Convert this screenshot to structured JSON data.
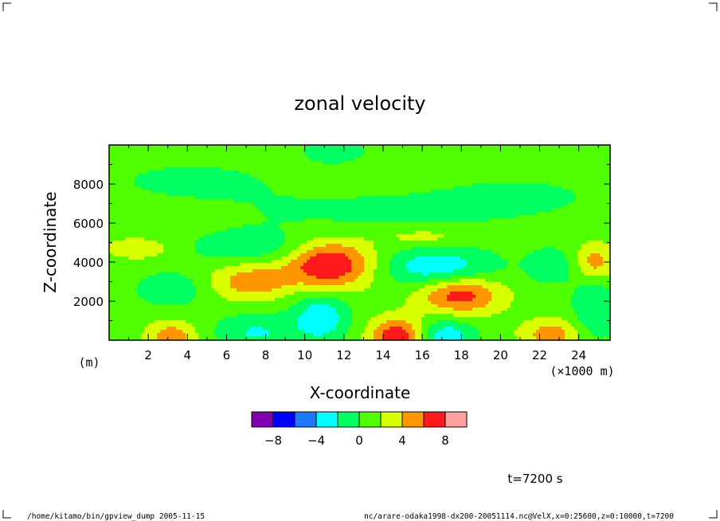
{
  "chart_data": {
    "type": "heatmap",
    "title": "zonal velocity",
    "xlabel": "X-coordinate",
    "ylabel": "Z-coordinate",
    "x_unit": "(×1000 m)",
    "y_unit": "(m)",
    "xlim": [
      0,
      25.6
    ],
    "ylim": [
      0,
      10000
    ],
    "x_ticks": [
      2,
      4,
      6,
      8,
      10,
      12,
      14,
      16,
      18,
      20,
      22,
      24
    ],
    "y_ticks": [
      2000,
      4000,
      6000,
      8000
    ],
    "colorbar": {
      "levels": [
        -10,
        -8,
        -6,
        -4,
        -2,
        0,
        2,
        4,
        6,
        8,
        10
      ],
      "tick_labels": [
        -8,
        -4,
        0,
        4,
        8
      ],
      "colors": [
        "#8000b0",
        "#0000ff",
        "#1e78ff",
        "#00ffff",
        "#00ff60",
        "#50ff00",
        "#d8ff00",
        "#ff9600",
        "#ff1a1a",
        "#ffa0a0"
      ]
    },
    "background_value": 1,
    "features": [
      {
        "x": 11.2,
        "z": 3900,
        "value": 7.5,
        "sx": 1.6,
        "sz": 900
      },
      {
        "x": 17.9,
        "z": 2350,
        "value": 6.2,
        "sx": 1.5,
        "sz": 700
      },
      {
        "x": 7.2,
        "z": 3000,
        "value": 4.2,
        "sx": 1.4,
        "sz": 700
      },
      {
        "x": 14.7,
        "z": 200,
        "value": 6.6,
        "sx": 1.0,
        "sz": 650
      },
      {
        "x": 3.2,
        "z": 200,
        "value": 4.2,
        "sx": 0.9,
        "sz": 550
      },
      {
        "x": 22.6,
        "z": 300,
        "value": 4.2,
        "sx": 1.1,
        "sz": 550
      },
      {
        "x": 24.8,
        "z": 4000,
        "value": 4.2,
        "sx": 0.7,
        "sz": 700
      },
      {
        "x": 1.5,
        "z": 4700,
        "value": 2.6,
        "sx": 1.2,
        "sz": 400
      },
      {
        "x": 16.8,
        "z": 3700,
        "value": -4.8,
        "sx": 2.0,
        "sz": 700
      },
      {
        "x": 10.8,
        "z": 1200,
        "value": -4.6,
        "sx": 1.0,
        "sz": 900
      },
      {
        "x": 17.2,
        "z": 200,
        "value": -4.6,
        "sx": 1.0,
        "sz": 600
      },
      {
        "x": 7.5,
        "z": 400,
        "value": -3.2,
        "sx": 1.5,
        "sz": 700
      },
      {
        "x": 3.1,
        "z": 2600,
        "value": -2.8,
        "sx": 1.2,
        "sz": 600
      },
      {
        "x": 7.6,
        "z": 4700,
        "value": -2.6,
        "sx": 2.5,
        "sz": 600
      },
      {
        "x": 24.8,
        "z": 1600,
        "value": -3.0,
        "sx": 0.8,
        "sz": 1200
      },
      {
        "x": 22.6,
        "z": 3800,
        "value": -2.2,
        "sx": 1.0,
        "sz": 700
      },
      {
        "x": 11.5,
        "z": 9700,
        "value": -2.8,
        "sx": 1.0,
        "sz": 400
      },
      {
        "x": 4.2,
        "z": 8200,
        "value": -1.3,
        "sx": 4.0,
        "sz": 900
      },
      {
        "x": 12.5,
        "z": 6400,
        "value": -1.3,
        "sx": 5.0,
        "sz": 900
      },
      {
        "x": 21.0,
        "z": 7400,
        "value": -1.2,
        "sx": 4.0,
        "sz": 1000
      },
      {
        "x": 16.0,
        "z": 5300,
        "value": 2.3,
        "sx": 1.6,
        "sz": 350
      }
    ]
  },
  "time_label": "t=7200 s",
  "footer_left": "/home/kitamo/bin/gpview_dump  2005-11-15",
  "footer_right": "nc/arare-odaka1998-dx200-20051114.nc@VelX,x=0:25600,z=0:10000,t=7200"
}
